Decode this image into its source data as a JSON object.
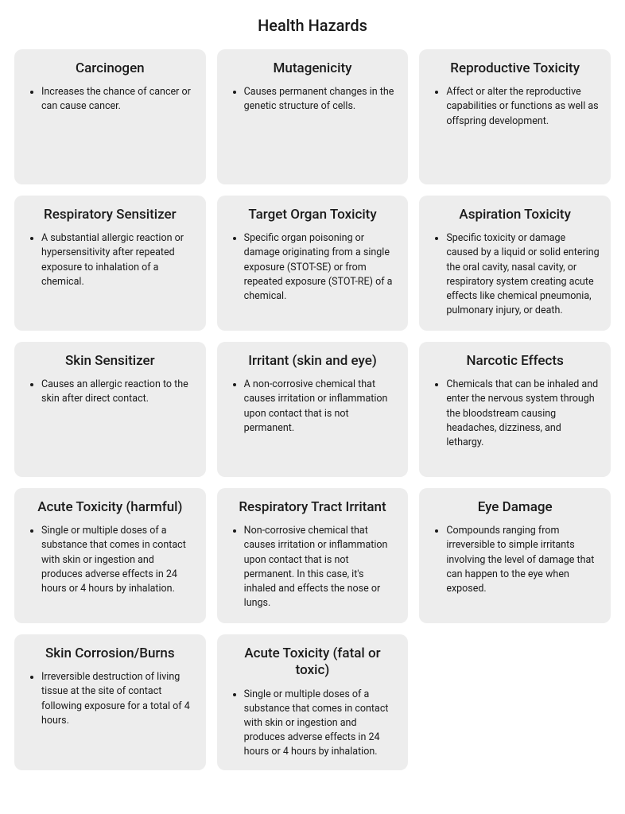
{
  "title": "Health Hazards",
  "background_color": "#ffffff",
  "card_bg_color": "#ededed",
  "text_color": "#1a1a1a",
  "grid_columns": 3,
  "title_fontsize": 20,
  "card_title_fontsize": 17,
  "card_body_fontsize": 12.5,
  "card_border_radius": 10,
  "cards": [
    {
      "title": "Carcinogen",
      "bullet": "Increases the chance of cancer or can cause cancer."
    },
    {
      "title": "Mutagenicity",
      "bullet": "Causes permanent changes in the genetic structure of cells."
    },
    {
      "title": "Reproductive Toxicity",
      "bullet": "Affect or alter the reproductive capabilities or functions as well as offspring development."
    },
    {
      "title": "Respiratory Sensitizer",
      "bullet": "A substantial allergic reaction or hypersensitivity after repeated exposure to inhalation of a chemical."
    },
    {
      "title": "Target Organ Toxicity",
      "bullet": "Specific organ poisoning or damage originating from a single exposure (STOT-SE) or from repeated exposure (STOT-RE) of a chemical."
    },
    {
      "title": "Aspiration Toxicity",
      "bullet": "Specific toxicity or damage caused by a liquid or solid entering the oral cavity, nasal cavity, or respiratory system creating acute effects like chemical pneumonia, pulmonary injury, or death."
    },
    {
      "title": "Skin Sensitizer",
      "bullet": "Causes an allergic reaction to the skin after direct contact."
    },
    {
      "title": "Irritant (skin and eye)",
      "bullet": "A non-corrosive chemical that causes irritation or inflammation upon contact that is not permanent."
    },
    {
      "title": "Narcotic Effects",
      "bullet": "Chemicals that can be inhaled and enter the nervous system through the bloodstream causing headaches, dizziness, and lethargy."
    },
    {
      "title": "Acute Toxicity (harmful)",
      "bullet": "Single or multiple doses of a substance that comes in contact with skin or ingestion and produces adverse effects in 24 hours or 4 hours by inhalation."
    },
    {
      "title": "Respiratory Tract Irritant",
      "bullet": "Non-corrosive chemical that causes irritation or inflammation upon contact that is not permanent. In this case, it's inhaled and effects the nose or lungs."
    },
    {
      "title": "Eye Damage",
      "bullet": "Compounds ranging from irreversible to simple irritants involving the level of damage that can happen to the eye when exposed."
    },
    {
      "title": "Skin Corrosion/Burns",
      "bullet": "Irreversible destruction of living tissue at the site of contact following exposure for a total of 4 hours."
    },
    {
      "title": "Acute Toxicity (fatal or toxic)",
      "bullet": "Single or multiple doses of a substance that comes in contact with skin or ingestion and produces adverse effects in 24 hours or 4 hours by inhalation."
    }
  ]
}
